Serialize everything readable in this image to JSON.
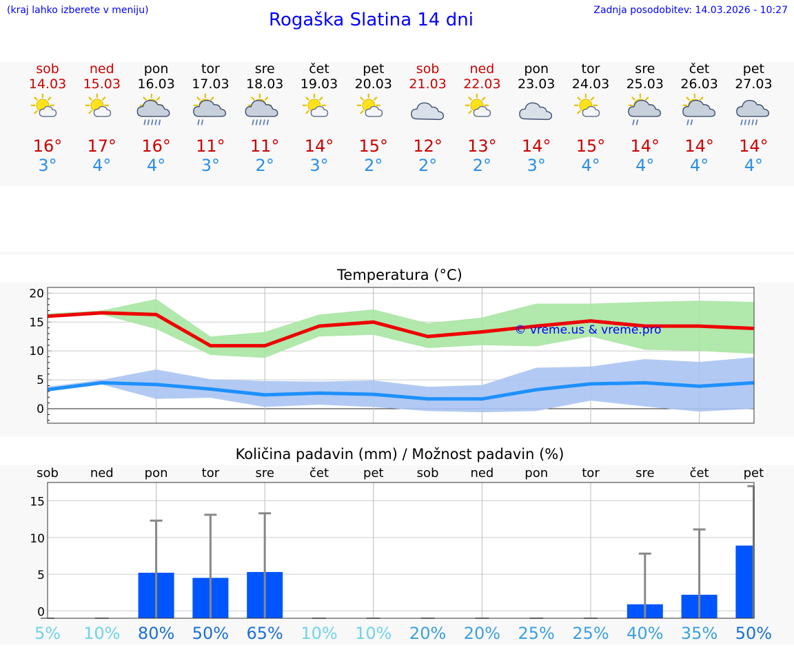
{
  "header": {
    "menu_hint": "(kraj lahko izberete v meniju)",
    "title": "Rogaška Slatina 14 dni",
    "updated": "Zadnja posodobitev: 14.03.2026 - 10:27"
  },
  "days": [
    {
      "name": "sob",
      "date": "14.03",
      "weekend": true,
      "icon": "sun-cloud-icon",
      "tmax": "16°",
      "tmin": "3°"
    },
    {
      "name": "ned",
      "date": "15.03",
      "weekend": true,
      "icon": "sun-cloud-icon",
      "tmax": "17°",
      "tmin": "4°"
    },
    {
      "name": "pon",
      "date": "16.03",
      "weekend": false,
      "icon": "sun-cloud-rain-icon",
      "tmax": "16°",
      "tmin": "4°"
    },
    {
      "name": "tor",
      "date": "17.03",
      "weekend": false,
      "icon": "sun-cloud-light-rain-icon",
      "tmax": "11°",
      "tmin": "3°"
    },
    {
      "name": "sre",
      "date": "18.03",
      "weekend": false,
      "icon": "sun-cloud-rain-icon",
      "tmax": "11°",
      "tmin": "2°"
    },
    {
      "name": "čet",
      "date": "19.03",
      "weekend": false,
      "icon": "sun-cloud-icon",
      "tmax": "14°",
      "tmin": "3°"
    },
    {
      "name": "pet",
      "date": "20.03",
      "weekend": false,
      "icon": "sun-cloud-icon",
      "tmax": "15°",
      "tmin": "2°"
    },
    {
      "name": "sob",
      "date": "21.03",
      "weekend": true,
      "icon": "cloud-icon",
      "tmax": "12°",
      "tmin": "2°"
    },
    {
      "name": "ned",
      "date": "22.03",
      "weekend": true,
      "icon": "sun-cloud-icon",
      "tmax": "13°",
      "tmin": "2°"
    },
    {
      "name": "pon",
      "date": "23.03",
      "weekend": false,
      "icon": "cloud-icon",
      "tmax": "14°",
      "tmin": "3°"
    },
    {
      "name": "tor",
      "date": "24.03",
      "weekend": false,
      "icon": "sun-cloud-icon",
      "tmax": "15°",
      "tmin": "4°"
    },
    {
      "name": "sre",
      "date": "25.03",
      "weekend": false,
      "icon": "sun-cloud-light-rain-icon",
      "tmax": "14°",
      "tmin": "4°"
    },
    {
      "name": "čet",
      "date": "26.03",
      "weekend": false,
      "icon": "sun-cloud-light-rain-icon",
      "tmax": "14°",
      "tmin": "4°"
    },
    {
      "name": "pet",
      "date": "27.03",
      "weekend": false,
      "icon": "cloud-rain-icon",
      "tmax": "14°",
      "tmin": "4°"
    }
  ],
  "colors": {
    "title_blue": "#0000ff",
    "weekend_red": "#cc0000",
    "max_line": "#ee0000",
    "min_line": "#1e90ff",
    "max_band": "#a8e6a3",
    "min_band": "#aac4f2",
    "bar": "#0055ff",
    "err": "#888888"
  },
  "chart_data": [
    {
      "type": "line",
      "title": "Temperatura (°C)",
      "watermark": "© vreme.us & vreme.pro",
      "ylim": [
        -2.5,
        21
      ],
      "yticks": [
        "20",
        "15",
        "10",
        "5",
        "0"
      ],
      "x": [
        0,
        1,
        2,
        3,
        4,
        5,
        6,
        7,
        8,
        9,
        10,
        11,
        12,
        13
      ],
      "series": [
        {
          "name": "max",
          "values": [
            16,
            16.6,
            16.3,
            10.9,
            10.9,
            14.3,
            15,
            12.5,
            13.3,
            14.3,
            15.2,
            14.3,
            14.3,
            13.9
          ],
          "band_low": [
            15.8,
            16.3,
            13.8,
            9.3,
            8.8,
            12.5,
            12.8,
            10.5,
            11,
            10.8,
            12.5,
            10.2,
            10,
            9.5
          ],
          "band_high": [
            16.5,
            17,
            19,
            12.5,
            13.3,
            16.3,
            17.2,
            14.8,
            15.8,
            18.2,
            18.2,
            18.5,
            18.7,
            18.5
          ]
        },
        {
          "name": "min",
          "values": [
            3.3,
            4.5,
            4.2,
            3.4,
            2.4,
            2.7,
            2.5,
            1.7,
            1.7,
            3.3,
            4.3,
            4.5,
            3.9,
            4.5
          ],
          "band_low": [
            3,
            4.2,
            1.7,
            1.9,
            0.3,
            0.7,
            0.3,
            -0.4,
            -0.6,
            -0.4,
            1.4,
            0.4,
            -0.5,
            0
          ],
          "band_high": [
            3.8,
            5,
            6.8,
            5.1,
            4.8,
            4.7,
            4.9,
            3.8,
            4.1,
            7.1,
            7.3,
            8.6,
            8.1,
            8.9
          ]
        }
      ]
    },
    {
      "type": "bar",
      "title": "Količina padavin (mm) / Možnost padavin (%)",
      "ylim": [
        -1,
        17.5
      ],
      "yticks": [
        "15",
        "10",
        "5",
        "0"
      ],
      "categories": [
        "sob",
        "ned",
        "pon",
        "tor",
        "sre",
        "čet",
        "pet",
        "sob",
        "ned",
        "pon",
        "tor",
        "sre",
        "čet",
        "pet"
      ],
      "values": [
        0,
        0,
        5.2,
        4.5,
        5.3,
        0,
        0,
        0,
        0,
        0,
        0,
        0.9,
        2.2,
        8.9
      ],
      "err_low": [
        0,
        0,
        0,
        0,
        0,
        0,
        0,
        0,
        0,
        0,
        0,
        0,
        0,
        0
      ],
      "err_high": [
        0,
        0,
        12.3,
        13.1,
        13.3,
        0,
        0,
        0,
        0,
        0,
        0,
        7.8,
        11.1,
        17
      ],
      "probability": [
        "5%",
        "10%",
        "80%",
        "50%",
        "65%",
        "10%",
        "10%",
        "20%",
        "20%",
        "25%",
        "25%",
        "40%",
        "35%",
        "50%"
      ],
      "probability_values": [
        5,
        10,
        80,
        50,
        65,
        10,
        10,
        20,
        20,
        25,
        25,
        40,
        35,
        50
      ]
    }
  ]
}
